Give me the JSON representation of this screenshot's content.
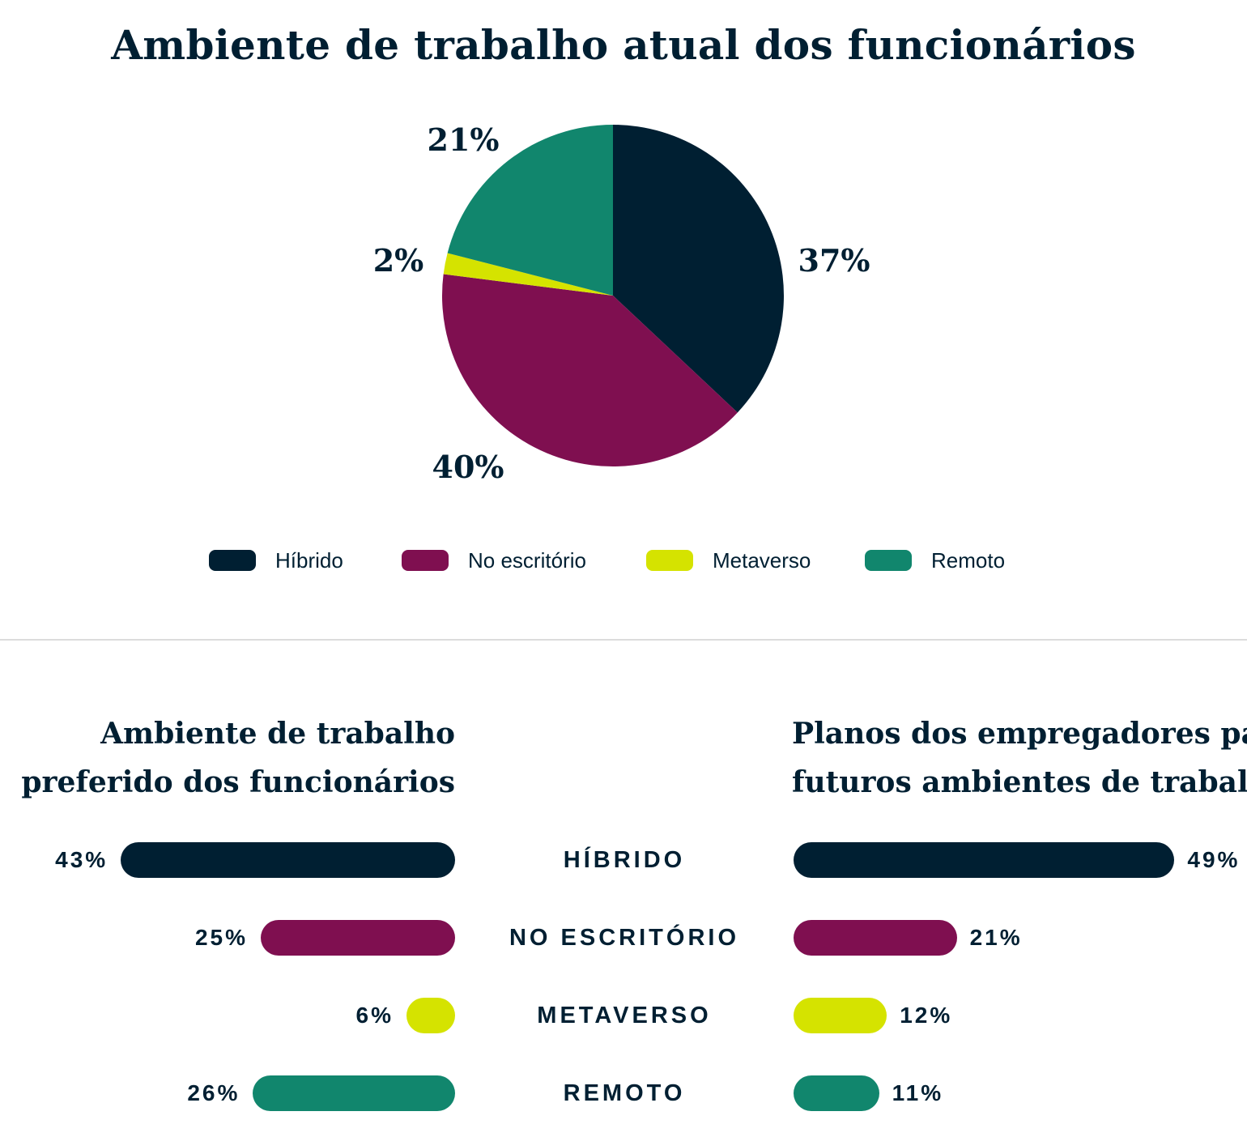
{
  "colors": {
    "hibrido": "#001f32",
    "escritorio": "#7f0f50",
    "metaverso": "#d5e300",
    "remoto": "#11866d",
    "text": "#001f32"
  },
  "chart_data": [
    {
      "type": "pie",
      "title": "Ambiente de trabalho atual dos funcionários",
      "start_angle": "top, clockwise",
      "slices": [
        {
          "name": "Híbrido",
          "value": 37,
          "label": "37%",
          "color": "#001f32"
        },
        {
          "name": "No escritório",
          "value": 40,
          "label": "40%",
          "color": "#7f0f50"
        },
        {
          "name": "Metaverso",
          "value": 2,
          "label": "2%",
          "color": "#d5e300"
        },
        {
          "name": "Remoto",
          "value": 21,
          "label": "21%",
          "color": "#11866d"
        }
      ],
      "legend": {
        "placement": "bottom",
        "entries": [
          "Híbrido",
          "No escritório",
          "Metaverso",
          "Remoto"
        ]
      }
    },
    {
      "type": "bar",
      "orientation": "horizontal",
      "direction": "right-to-left",
      "title": [
        "Ambiente de trabalho",
        "preferido dos funcionários"
      ],
      "categories": [
        "HÍBRIDO",
        "NO ESCRITÓRIO",
        "METAVERSO",
        "REMOTO"
      ],
      "values": [
        43,
        25,
        6,
        26
      ],
      "labels": [
        "43%",
        "25%",
        "6%",
        "26%"
      ],
      "colors": [
        "#001f32",
        "#7f0f50",
        "#d5e300",
        "#11866d"
      ]
    },
    {
      "type": "bar",
      "orientation": "horizontal",
      "direction": "left-to-right",
      "title": [
        "Planos dos empregadores para",
        "futuros ambientes de trabalho"
      ],
      "categories": [
        "HÍBRIDO",
        "NO ESCRITÓRIO",
        "METAVERSO",
        "REMOTO"
      ],
      "values": [
        49,
        21,
        12,
        11
      ],
      "labels": [
        "49%",
        "21%",
        "12%",
        "11%"
      ],
      "colors": [
        "#001f32",
        "#7f0f50",
        "#d5e300",
        "#11866d"
      ]
    }
  ]
}
